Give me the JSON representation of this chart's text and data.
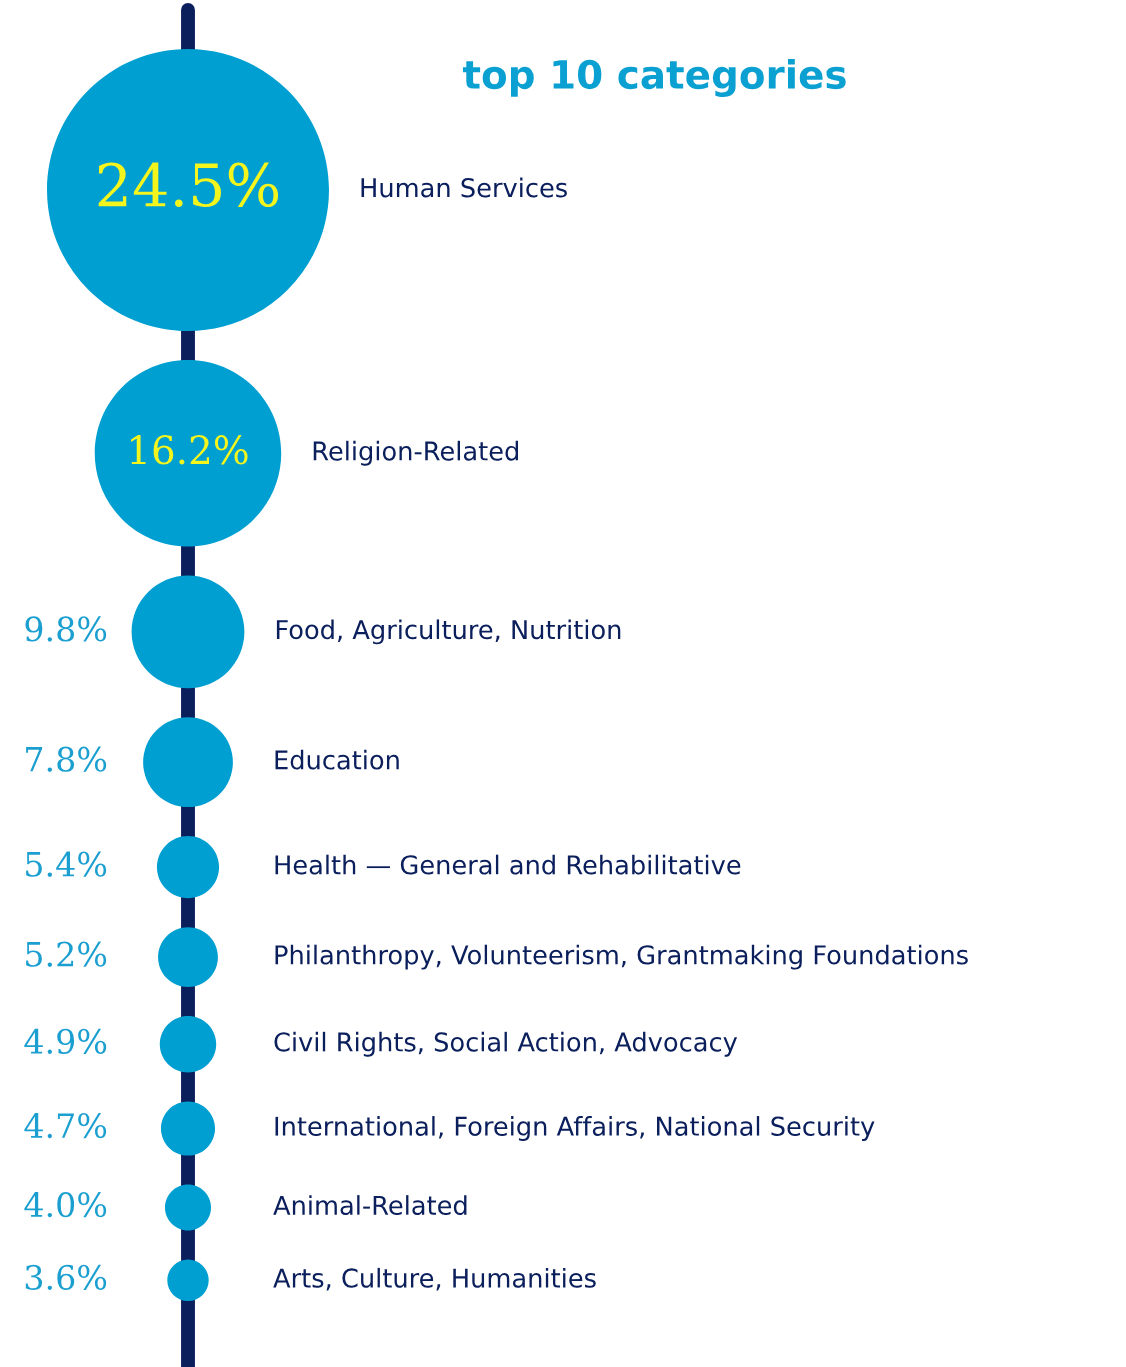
{
  "chart_data": {
    "type": "other",
    "title": "top 10 categories",
    "categories": [
      "Human Services",
      "Religion-Related",
      "Food, Agriculture, Nutrition",
      "Education",
      "Health — General and Rehabilitative",
      "Philanthropy, Volunteerism, Grantmaking Foundations",
      "Civil Rights, Social Action, Advocacy",
      "International, Foreign Affairs, National Security",
      "Animal-Related",
      "Arts, Culture, Humanities"
    ],
    "values": [
      24.5,
      16.2,
      9.8,
      7.8,
      5.4,
      5.2,
      4.9,
      4.7,
      4.0,
      3.6
    ],
    "value_labels": [
      "24.5%",
      "16.2%",
      "9.8%",
      "7.8%",
      "5.4%",
      "5.2%",
      "4.9%",
      "4.7%",
      "4.0%",
      "3.6%"
    ],
    "color": "#009fd1"
  }
}
